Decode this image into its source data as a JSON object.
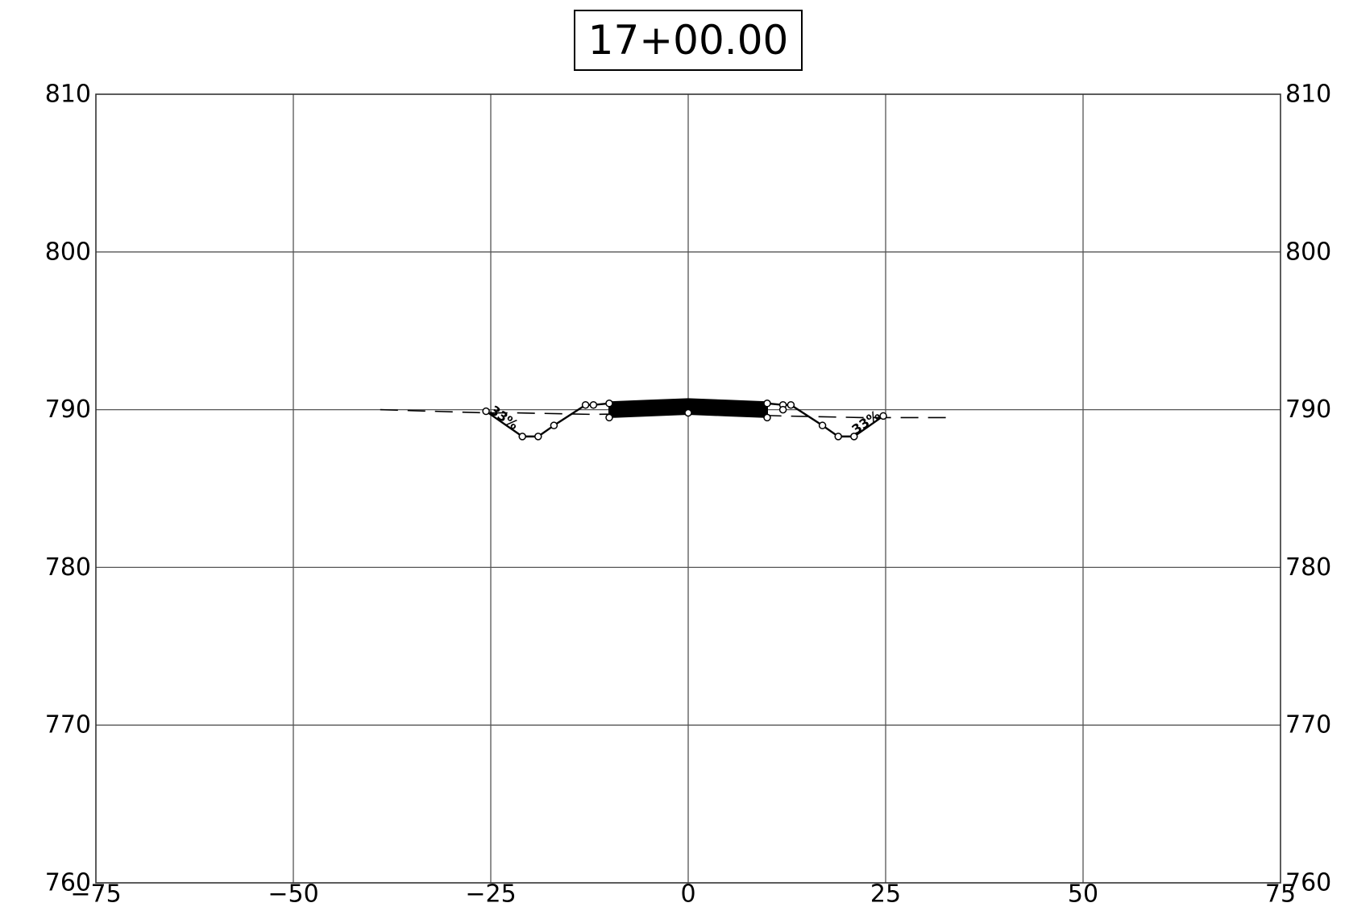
{
  "chart_data": {
    "type": "line",
    "title": "17+00.00",
    "xlabel": "",
    "ylabel": "",
    "xlim": [
      -75,
      75
    ],
    "ylim": [
      760,
      810
    ],
    "x_ticks": [
      -75,
      -50,
      -25,
      0,
      25,
      50,
      75
    ],
    "x_tick_labels": [
      "−75",
      "−50",
      "−25",
      "0",
      "25",
      "50",
      "75"
    ],
    "y_ticks": [
      760,
      770,
      780,
      790,
      800,
      810
    ],
    "y_tick_labels": [
      "760",
      "770",
      "780",
      "790",
      "800",
      "810"
    ],
    "grid": true,
    "y_axis_labels_both_sides": true,
    "series": [
      {
        "role": "existing-ground",
        "style": "dashed",
        "x": [
          -39,
          -25.6,
          -22,
          -12,
          0,
          12,
          22,
          25,
          33
        ],
        "y": [
          790.0,
          789.8,
          789.8,
          789.7,
          789.8,
          789.6,
          789.5,
          789.5,
          789.5
        ]
      },
      {
        "role": "proposed-section",
        "style": "solid",
        "x": [
          -25.6,
          -21,
          -19,
          -17,
          -13,
          -12,
          -10,
          0,
          10,
          12,
          13,
          17,
          19,
          21,
          24.7
        ],
        "y": [
          789.9,
          788.3,
          788.3,
          789.0,
          790.3,
          790.3,
          790.4,
          790.6,
          790.4,
          790.3,
          790.3,
          789.0,
          788.3,
          788.3,
          789.6
        ]
      },
      {
        "role": "pavement-top",
        "style": "thick",
        "x": [
          -10,
          -5,
          0,
          5,
          10
        ],
        "y": [
          790.4,
          790.5,
          790.6,
          790.5,
          790.4
        ]
      },
      {
        "role": "pavement-bottom",
        "style": "thick",
        "x": [
          -10,
          -5,
          0,
          5,
          10
        ],
        "y": [
          789.6,
          789.7,
          789.8,
          789.7,
          789.6
        ]
      }
    ],
    "markers": {
      "x": [
        -25.6,
        -21,
        -19,
        -17,
        -13,
        -12,
        -10,
        -10,
        0,
        10,
        10,
        12,
        12,
        13,
        17,
        19,
        21,
        24.7
      ],
      "y": [
        789.9,
        788.3,
        788.3,
        789.0,
        790.3,
        790.3,
        790.4,
        789.5,
        789.8,
        790.4,
        789.5,
        790.3,
        790.0,
        790.3,
        789.0,
        788.3,
        788.3,
        789.6
      ]
    },
    "annotations": [
      {
        "text": "33%",
        "x": -23.3,
        "y": 789.5,
        "angle": 35
      },
      {
        "text": "33%",
        "x": 22.5,
        "y": 789.2,
        "angle": -35
      }
    ]
  }
}
